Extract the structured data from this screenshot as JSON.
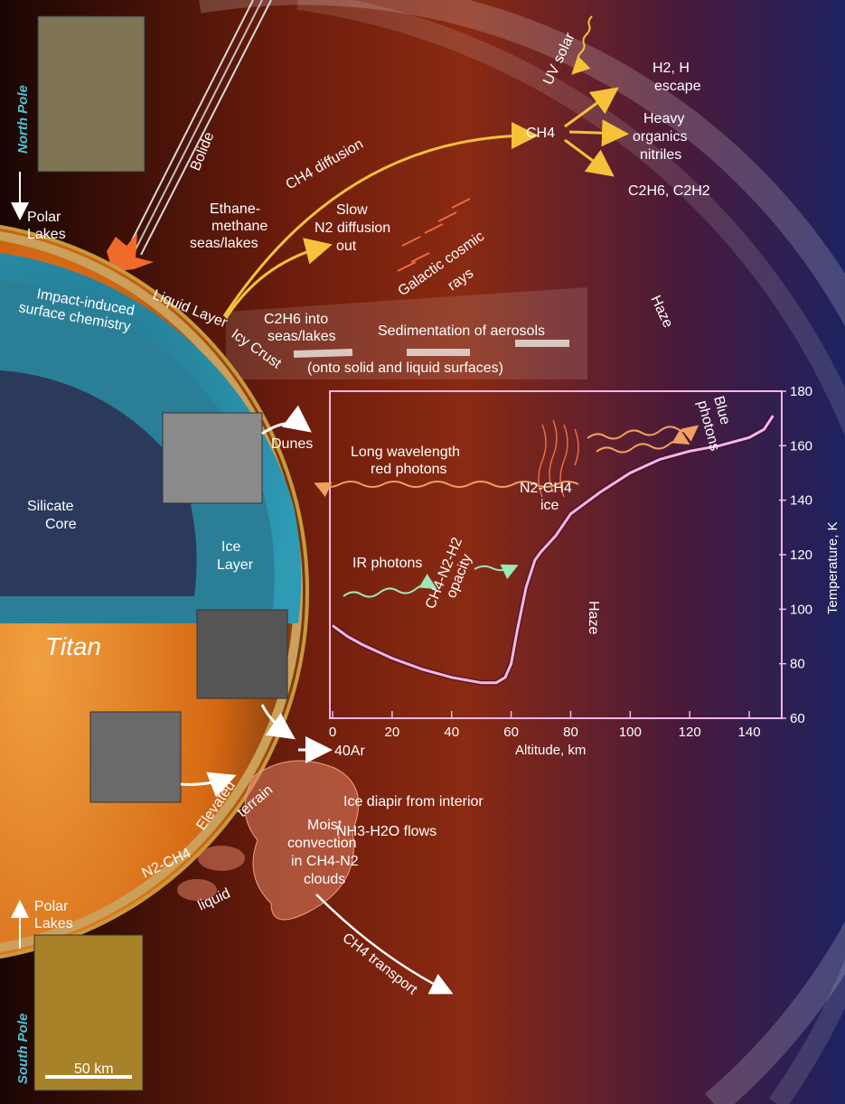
{
  "colors": {
    "sky_left": "#2a0a04",
    "sky_mid": "#8a2a12",
    "sky_right": "#1e2260",
    "titan_orange": "#e8821e",
    "ice_blue": "#2b8fa8",
    "core": "#2b3a5c",
    "temp_curve": "#f4b6e8",
    "arrow_yellow": "#f5c23a",
    "ir_green": "#9be8b8",
    "photon_orange": "#f0a060",
    "pole_cyan": "#4fc3d9"
  },
  "titan_label": "Titan",
  "poles": {
    "north_label": "North Pole",
    "south_label": "South Pole",
    "north_lakes": [
      "Polar",
      "Lakes"
    ],
    "south_lakes": [
      "Polar",
      "Lakes"
    ],
    "scale_bar": "50 km"
  },
  "interior": {
    "silicate_core": [
      "Silicate",
      "Core"
    ],
    "ice_layer": [
      "Ice",
      "Layer"
    ],
    "liquid_layer": "Liquid Layer",
    "icy_crust": "Icy Crust",
    "impact": [
      "Impact-induced",
      "surface chemistry"
    ],
    "dunes": "Dunes",
    "elevated": [
      "Elevated",
      "terrain"
    ]
  },
  "processes": {
    "bolide": "Bolide",
    "ethane_lakes": [
      "Ethane-",
      "methane",
      "seas/lakes"
    ],
    "ch4_diffusion": "CH4 diffusion",
    "n2_diffusion": [
      "Slow",
      "N2 diffusion",
      "out"
    ],
    "uv_solar": "UV solar",
    "ch4": "CH4",
    "h2_escape": [
      "H2, H",
      "escape"
    ],
    "heavy_organics": [
      "Heavy",
      "organics",
      "nitriles"
    ],
    "c2h6_c2h2": "C2H6, C2H2",
    "cosmic_rays": [
      "Galactic cosmic",
      "rays"
    ],
    "c2h6_into": [
      "C2H6 into",
      "seas/lakes"
    ],
    "sedimentation": "Sedimentation of aerosols",
    "onto_surfaces": "(onto solid and liquid surfaces)",
    "haze_outer": "Haze",
    "argon": "40Ar",
    "ice_diapir": "Ice diapir from interior",
    "nh3_flows": "NH3-H2O flows",
    "moist_convection": [
      "Moist",
      "convection",
      "in CH4-N2",
      "clouds"
    ],
    "n2_ch4_liquid": [
      "N2-CH4",
      "liquid"
    ],
    "ch4_transport": "CH4 transport"
  },
  "chart_labels": {
    "long_wavelength": [
      "Long wavelength",
      "red photons"
    ],
    "blue_photons": [
      "Blue",
      "photons"
    ],
    "n2_ch4_ice": [
      "N2-CH4",
      "ice"
    ],
    "ir_photons": "IR photons",
    "opacity": [
      "CH4-N2-H2",
      "opacity"
    ],
    "haze_inner": "Haze"
  },
  "chart_data": {
    "type": "line",
    "xlabel": "Altitude, km",
    "ylabel": "Temperature, K",
    "xlim": [
      0,
      150
    ],
    "ylim": [
      60,
      180
    ],
    "xticks": [
      0,
      20,
      40,
      60,
      80,
      100,
      120,
      140
    ],
    "yticks": [
      60,
      80,
      100,
      120,
      140,
      160,
      180
    ],
    "series": [
      {
        "x": [
          0,
          5,
          10,
          20,
          30,
          40,
          50,
          55,
          58,
          60,
          62,
          65,
          68,
          70,
          75,
          80,
          90,
          100,
          110,
          120,
          130,
          140,
          145,
          148
        ],
        "y": [
          94,
          90,
          87,
          82,
          78,
          75,
          73,
          73,
          75,
          80,
          92,
          108,
          118,
          121,
          127,
          135,
          143,
          150,
          155,
          158,
          160,
          163,
          166,
          171
        ]
      }
    ]
  }
}
